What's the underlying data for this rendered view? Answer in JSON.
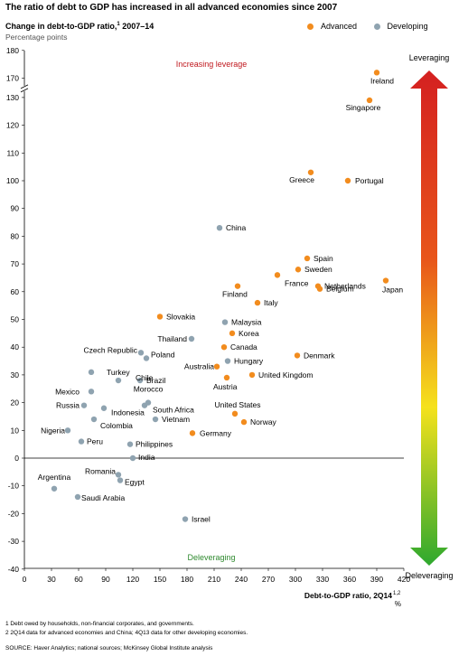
{
  "title": "The ratio of debt to GDP has increased in all advanced economies since 2007",
  "subtitle": "Change in debt-to-GDP ratio,",
  "subtitle_sup": "1",
  "subtitle_period": " 2007–14",
  "units": "Percentage points",
  "legend": [
    {
      "name": "Advanced",
      "color": "#f28c1e"
    },
    {
      "name": "Developing",
      "color": "#8fa3b0"
    }
  ],
  "annotations": {
    "top": "Increasing leverage",
    "bottom": "Deleveraging",
    "arrow_top": "Leveraging",
    "arrow_bottom": "Deleveraging"
  },
  "footnotes": [
    "1  Debt owed by households, non-financial corporates, and governments.",
    "2  2Q14 data for advanced economies and China; 4Q13 data for other developing economies."
  ],
  "source": "SOURCE:  Haver Analytics; national sources; McKinsey Global Institute analysis",
  "chart_data": {
    "type": "scatter",
    "title": "Change in debt-to-GDP ratio, 2007–14",
    "xlabel": "Debt-to-GDP ratio, 2Q14",
    "xlabel_sup": "1,2",
    "xunit": "%",
    "ylabel": "Percentage points",
    "xlim": [
      0,
      420
    ],
    "ylim": [
      -40,
      180
    ],
    "y_axis_break": [
      130,
      170
    ],
    "x_ticks": [
      "0",
      "30",
      "60",
      "90",
      "120",
      "150",
      "180",
      "210",
      "240",
      "270",
      "300",
      "330",
      "360",
      "390",
      "420"
    ],
    "y_ticks": [
      "-40",
      "-30",
      "-20",
      "-10",
      "0",
      "10",
      "20",
      "30",
      "40",
      "50",
      "60",
      "70",
      "80",
      "90",
      "100",
      "110",
      "120",
      "130",
      "170",
      "180"
    ],
    "grid": false,
    "series": [
      {
        "name": "Advanced",
        "color": "#f28c1e",
        "points": [
          {
            "label": "Ireland",
            "x": 390,
            "y": 172
          },
          {
            "label": "Singapore",
            "x": 382,
            "y": 129
          },
          {
            "label": "Greece",
            "x": 317,
            "y": 103
          },
          {
            "label": "Portugal",
            "x": 358,
            "y": 100
          },
          {
            "label": "Spain",
            "x": 313,
            "y": 72
          },
          {
            "label": "Sweden",
            "x": 303,
            "y": 68
          },
          {
            "label": "France",
            "x": 280,
            "y": 66
          },
          {
            "label": "Netherlands",
            "x": 325,
            "y": 62
          },
          {
            "label": "Japan",
            "x": 400,
            "y": 64
          },
          {
            "label": "Finland",
            "x": 236,
            "y": 62
          },
          {
            "label": "Belgium",
            "x": 327,
            "y": 61
          },
          {
            "label": "Italy",
            "x": 258,
            "y": 56
          },
          {
            "label": "Slovakia",
            "x": 150,
            "y": 51
          },
          {
            "label": "Korea",
            "x": 230,
            "y": 45
          },
          {
            "label": "Canada",
            "x": 221,
            "y": 40
          },
          {
            "label": "Denmark",
            "x": 302,
            "y": 37
          },
          {
            "label": "Australia",
            "x": 213,
            "y": 33
          },
          {
            "label": "United Kingdom",
            "x": 252,
            "y": 30
          },
          {
            "label": "Austria",
            "x": 224,
            "y": 29
          },
          {
            "label": "United States",
            "x": 233,
            "y": 16
          },
          {
            "label": "Norway",
            "x": 243,
            "y": 13
          },
          {
            "label": "Germany",
            "x": 186,
            "y": 9
          }
        ]
      },
      {
        "name": "Developing",
        "color": "#8fa3b0",
        "points": [
          {
            "label": "China",
            "x": 216,
            "y": 83
          },
          {
            "label": "Malaysia",
            "x": 222,
            "y": 49
          },
          {
            "label": "Thailand",
            "x": 185,
            "y": 43
          },
          {
            "label": "Czech Republic",
            "x": 129,
            "y": 38
          },
          {
            "label": "Poland",
            "x": 135,
            "y": 36
          },
          {
            "label": "Hungary",
            "x": 225,
            "y": 35
          },
          {
            "label": "Turkey",
            "x": 74,
            "y": 31
          },
          {
            "label": "Chile",
            "x": 104,
            "y": 28
          },
          {
            "label": "Brazil",
            "x": 128,
            "y": 28
          },
          {
            "label": "Mexico",
            "x": 74,
            "y": 24
          },
          {
            "label": "Morocco",
            "x": 137,
            "y": 20
          },
          {
            "label": "South Africa",
            "x": 133,
            "y": 19
          },
          {
            "label": "Russia",
            "x": 66,
            "y": 19
          },
          {
            "label": "Indonesia",
            "x": 88,
            "y": 18
          },
          {
            "label": "Vietnam",
            "x": 145,
            "y": 14
          },
          {
            "label": "Colombia",
            "x": 77,
            "y": 14
          },
          {
            "label": "Nigeria",
            "x": 48,
            "y": 10
          },
          {
            "label": "Peru",
            "x": 63,
            "y": 6
          },
          {
            "label": "Philippines",
            "x": 117,
            "y": 5
          },
          {
            "label": "India",
            "x": 120,
            "y": 0
          },
          {
            "label": "Romania",
            "x": 104,
            "y": -6
          },
          {
            "label": "Egypt",
            "x": 106,
            "y": -8
          },
          {
            "label": "Argentina",
            "x": 33,
            "y": -11
          },
          {
            "label": "Saudi Arabia",
            "x": 59,
            "y": -14
          },
          {
            "label": "Israel",
            "x": 178,
            "y": -22
          }
        ]
      }
    ]
  }
}
